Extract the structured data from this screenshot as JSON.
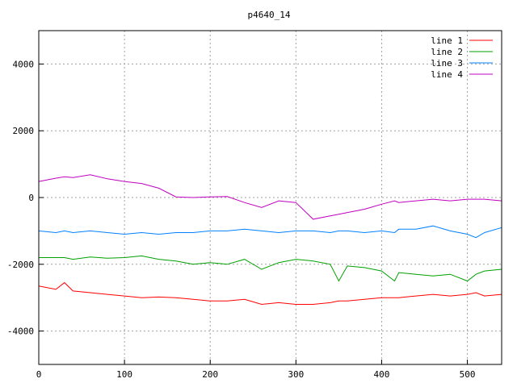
{
  "chart_data": {
    "type": "line",
    "title": "p4640_14",
    "xlabel": "",
    "ylabel": "",
    "xlim": [
      0,
      540
    ],
    "ylim": [
      -5000,
      5000
    ],
    "x_ticks": [
      0,
      100,
      200,
      300,
      400,
      500
    ],
    "y_ticks": [
      -4000,
      -2000,
      0,
      2000,
      4000
    ],
    "grid": true,
    "legend_position": "top-right",
    "x": [
      0,
      20,
      30,
      40,
      60,
      80,
      100,
      120,
      140,
      160,
      180,
      200,
      220,
      240,
      260,
      280,
      300,
      320,
      340,
      350,
      360,
      380,
      400,
      415,
      420,
      440,
      460,
      480,
      500,
      510,
      520,
      540
    ],
    "series": [
      {
        "name": "line 1",
        "color": "#ff0000",
        "values": [
          -2650,
          -2750,
          -2550,
          -2800,
          -2850,
          -2900,
          -2950,
          -3000,
          -2980,
          -3000,
          -3050,
          -3100,
          -3100,
          -3050,
          -3200,
          -3150,
          -3200,
          -3200,
          -3150,
          -3100,
          -3100,
          -3050,
          -3000,
          -3000,
          -3000,
          -2950,
          -2900,
          -2950,
          -2900,
          -2850,
          -2950,
          -2900
        ]
      },
      {
        "name": "line 2",
        "color": "#00a000",
        "values": [
          -1800,
          -1800,
          -1800,
          -1850,
          -1780,
          -1820,
          -1800,
          -1750,
          -1850,
          -1900,
          -2000,
          -1950,
          -2000,
          -1850,
          -2150,
          -1950,
          -1850,
          -1900,
          -2000,
          -2500,
          -2050,
          -2100,
          -2200,
          -2500,
          -2250,
          -2300,
          -2350,
          -2300,
          -2500,
          -2300,
          -2200,
          -2150
        ]
      },
      {
        "name": "line 3",
        "color": "#0080ff",
        "values": [
          -1000,
          -1050,
          -1000,
          -1050,
          -1000,
          -1050,
          -1100,
          -1050,
          -1100,
          -1050,
          -1050,
          -1000,
          -1000,
          -950,
          -1000,
          -1050,
          -1000,
          -1000,
          -1050,
          -1000,
          -1000,
          -1050,
          -1000,
          -1050,
          -950,
          -950,
          -850,
          -1000,
          -1100,
          -1200,
          -1050,
          -900
        ]
      },
      {
        "name": "line 4",
        "color": "#c000c0",
        "values": [
          480,
          580,
          620,
          600,
          680,
          560,
          480,
          420,
          280,
          20,
          0,
          20,
          30,
          -150,
          -300,
          -100,
          -150,
          -650,
          -550,
          -500,
          -450,
          -350,
          -200,
          -100,
          -150,
          -100,
          -50,
          -100,
          -50,
          -50,
          -50,
          -100
        ]
      }
    ]
  }
}
